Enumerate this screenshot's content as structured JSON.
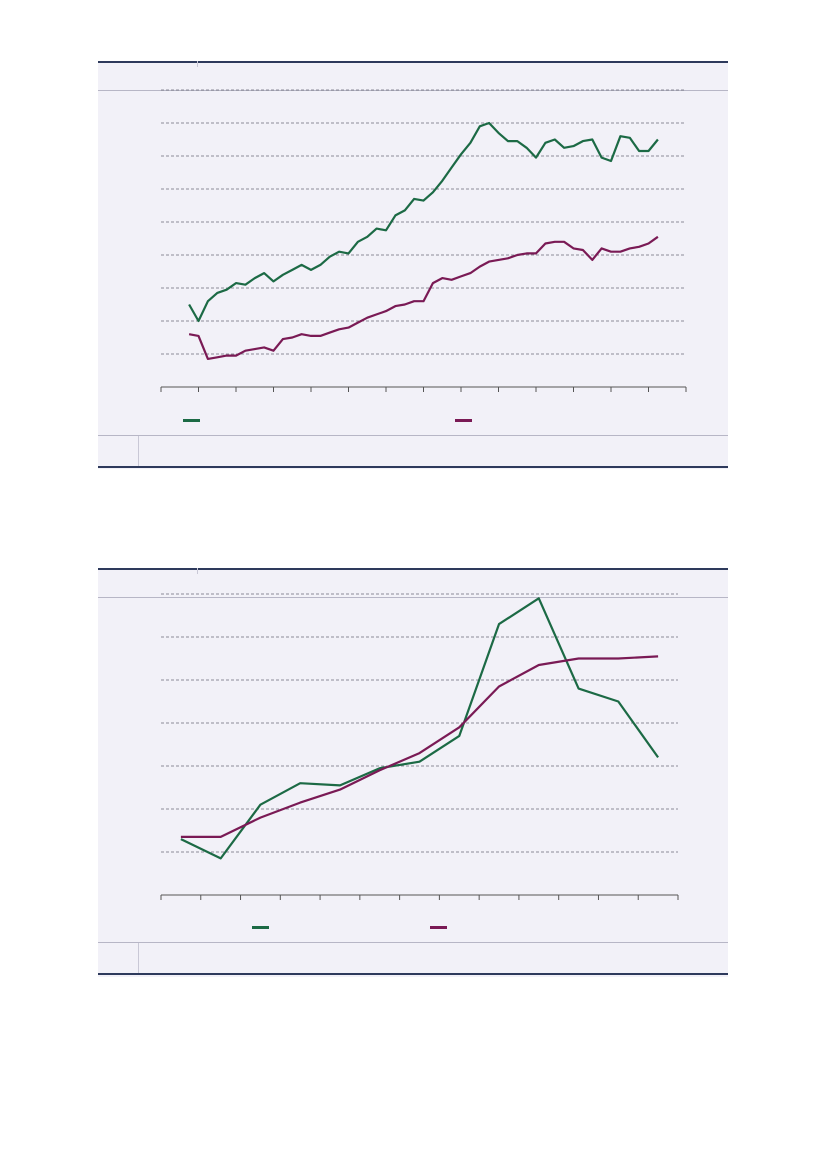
{
  "colors": {
    "series_a": "#1c6a45",
    "series_b": "#7a1a55",
    "frame": "#2e3a5c",
    "background": "#f2f1f8"
  },
  "chart_data": [
    {
      "type": "line",
      "title": "",
      "xlabel": "",
      "ylabel": "",
      "ylim": [
        0,
        9
      ],
      "xlim": [
        0,
        56
      ],
      "grid": true,
      "legend_position": "bottom",
      "x": [
        3,
        4,
        5,
        6,
        7,
        8,
        9,
        10,
        11,
        12,
        13,
        14,
        15,
        16,
        17,
        18,
        19,
        20,
        21,
        22,
        23,
        24,
        25,
        26,
        27,
        28,
        29,
        30,
        31,
        32,
        33,
        34,
        35,
        36,
        37,
        38,
        39,
        40,
        41,
        42,
        43,
        44,
        45,
        46,
        47,
        48,
        49,
        50,
        51,
        52,
        53
      ],
      "series": [
        {
          "name": "",
          "color": "#1c6a45",
          "values": [
            2.5,
            2.0,
            2.6,
            2.85,
            2.95,
            3.15,
            3.1,
            3.3,
            3.45,
            3.2,
            3.4,
            3.55,
            3.7,
            3.55,
            3.7,
            3.95,
            4.1,
            4.05,
            4.4,
            4.55,
            4.8,
            4.75,
            5.2,
            5.35,
            5.7,
            5.65,
            5.9,
            6.25,
            6.65,
            7.05,
            7.4,
            7.9,
            8.0,
            7.7,
            7.45,
            7.45,
            7.25,
            6.95,
            7.4,
            7.5,
            7.25,
            7.3,
            7.45,
            7.5,
            6.95,
            6.85,
            7.6,
            7.55,
            7.15,
            7.15,
            7.5
          ]
        },
        {
          "name": "",
          "color": "#7a1a55",
          "values": [
            1.6,
            1.55,
            0.85,
            0.9,
            0.95,
            0.95,
            1.1,
            1.15,
            1.2,
            1.1,
            1.45,
            1.5,
            1.6,
            1.55,
            1.55,
            1.65,
            1.75,
            1.8,
            1.95,
            2.1,
            2.2,
            2.3,
            2.45,
            2.5,
            2.6,
            2.6,
            3.15,
            3.3,
            3.25,
            3.35,
            3.45,
            3.65,
            3.8,
            3.85,
            3.9,
            4.0,
            4.05,
            4.05,
            4.35,
            4.4,
            4.4,
            4.2,
            4.15,
            3.85,
            4.2,
            4.1,
            4.1,
            4.2,
            4.25,
            4.35,
            4.55
          ]
        }
      ]
    },
    {
      "type": "line",
      "title": "",
      "xlabel": "",
      "ylabel": "",
      "ylim": [
        0,
        7
      ],
      "xlim": [
        0,
        13
      ],
      "grid": true,
      "legend_position": "bottom",
      "x": [
        0.5,
        1.5,
        2.5,
        3.5,
        4.5,
        5.5,
        6.5,
        7.5,
        8.5,
        9.5,
        10.5,
        11.5,
        12.5
      ],
      "series": [
        {
          "name": "",
          "color": "#1c6a45",
          "values": [
            1.3,
            0.85,
            2.1,
            2.6,
            2.55,
            2.95,
            3.1,
            3.7,
            6.3,
            6.9,
            4.8,
            4.5,
            3.2
          ]
        },
        {
          "name": "",
          "color": "#7a1a55",
          "values": [
            1.35,
            1.35,
            1.8,
            2.15,
            2.45,
            2.9,
            3.3,
            3.9,
            4.85,
            5.35,
            5.5,
            5.5,
            5.55
          ]
        }
      ]
    }
  ]
}
